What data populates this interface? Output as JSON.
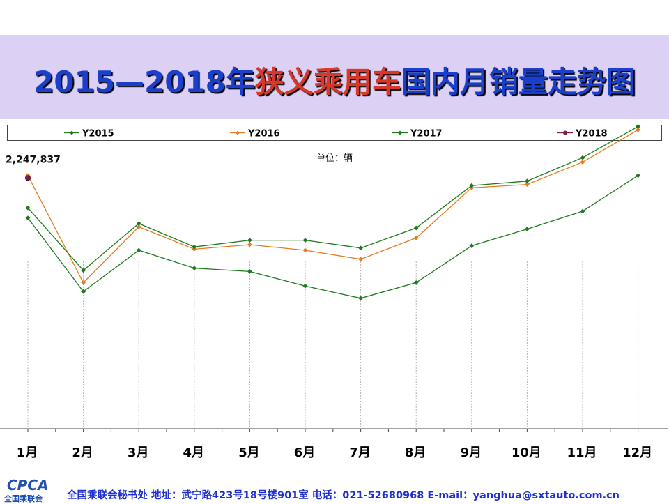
{
  "title": {
    "part1": "2015—2018年",
    "part2": "狭义乘用车",
    "part3": "国内月销量走势图"
  },
  "unit_label": "单位：辆",
  "colors": {
    "title_blue": "#1a3fc9",
    "title_red": "#d8382a",
    "title_band": "#dcd0f5",
    "footer_blue": "#1d2fd0"
  },
  "chart_data": {
    "type": "line",
    "categories": [
      "1月",
      "2月",
      "3月",
      "4月",
      "5月",
      "6月",
      "7月",
      "8月",
      "9月",
      "10月",
      "11月",
      "12月"
    ],
    "series": [
      {
        "name": "Y2015",
        "color": "#1e7a1e",
        "values": [
          1890000,
          1230000,
          1600000,
          1440000,
          1410000,
          1280000,
          1170000,
          1310000,
          1640000,
          1790000,
          1950000,
          2270000
        ]
      },
      {
        "name": "Y2016",
        "color": "#e87a1e",
        "values": [
          2270000,
          1310000,
          1810000,
          1610000,
          1650000,
          1600000,
          1520000,
          1710000,
          2160000,
          2190000,
          2390000,
          2680000
        ]
      },
      {
        "name": "Y2017",
        "color": "#1e7a1e",
        "values": [
          1980000,
          1420000,
          1840000,
          1630000,
          1690000,
          1690000,
          1620000,
          1800000,
          2180000,
          2220000,
          2430000,
          2710000
        ]
      },
      {
        "name": "Y2018",
        "color": "#7a1e4a",
        "values": [
          2247837,
          null,
          null,
          null,
          null,
          null,
          null,
          null,
          null,
          null,
          null,
          null
        ]
      }
    ],
    "data_labels": [
      {
        "series": "Y2018",
        "category": "1月",
        "text": "2,247,837"
      }
    ],
    "ylim": [
      0,
      3200000
    ],
    "grid": false,
    "legend_position": "top"
  },
  "footer": {
    "logo_text": "CPCA",
    "logo_sub": "全国乘联会",
    "contact": "全国乘联会秘书处  地址：武宁路423号18号楼901室    电话：021-52680968   E-mail：yanghua@sxtauto.com.cn"
  }
}
